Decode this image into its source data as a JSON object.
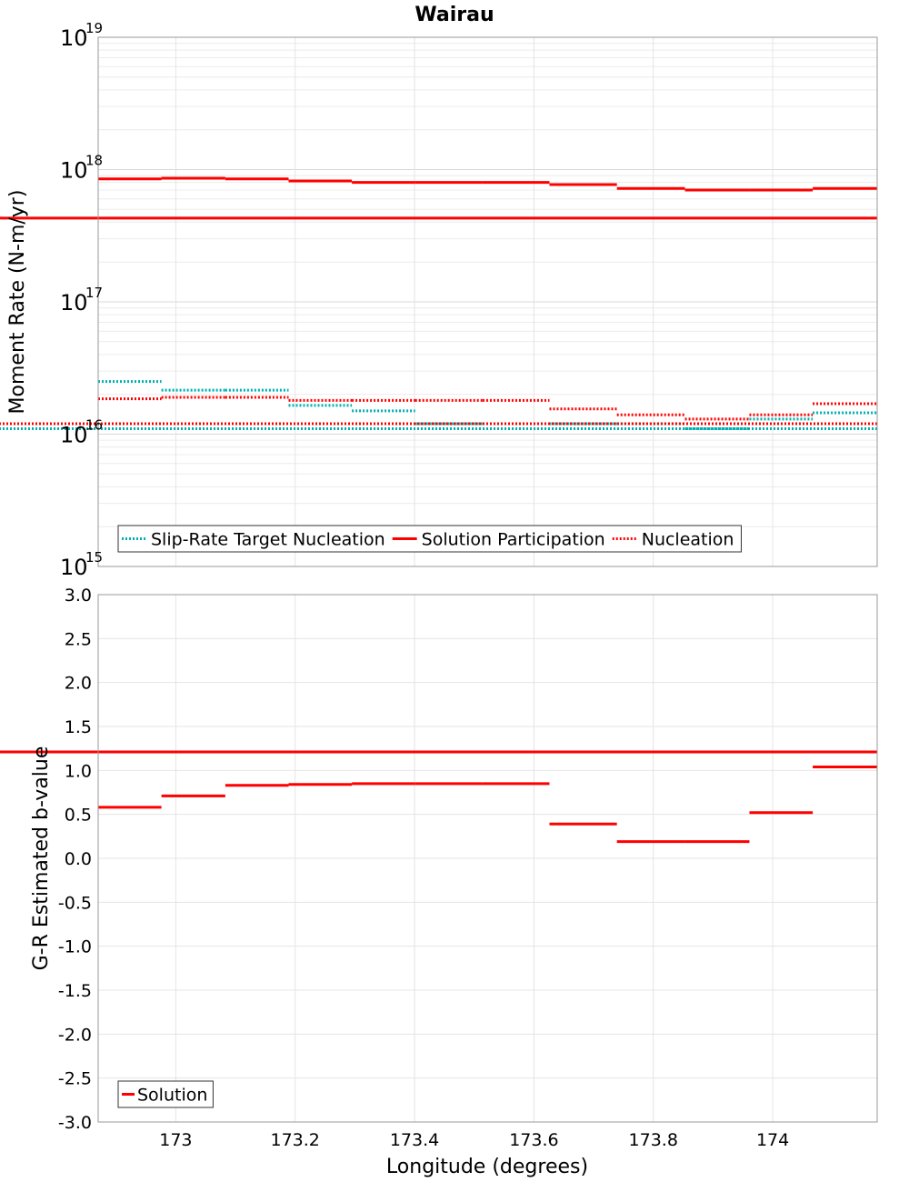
{
  "chart_data": [
    {
      "type": "line",
      "title": "Wairau",
      "ylabel": "Moment Rate (N-m/yr)",
      "yscale": "log",
      "ylim": [
        1000000000000000.0,
        1e+19
      ],
      "xlim": [
        172.87,
        174.175
      ],
      "y_tick_labels": [
        {
          "base": "10",
          "exp": "15",
          "value": 1000000000000000.0
        },
        {
          "base": "10",
          "exp": "16",
          "value": 1e+16
        },
        {
          "base": "10",
          "exp": "17",
          "value": 1e+17
        },
        {
          "base": "10",
          "exp": "18",
          "value": 1e+18
        },
        {
          "base": "10",
          "exp": "19",
          "value": 1e+19
        }
      ],
      "grid": true,
      "legend_position": "bottom-left",
      "segment_edges": [
        172.87,
        172.976,
        173.083,
        173.189,
        173.295,
        173.401,
        173.514,
        173.626,
        173.739,
        173.853,
        173.961,
        174.067,
        174.175
      ],
      "series": [
        {
          "name": "Slip-Rate Target Nucleation",
          "color": "#00b0b0",
          "style": "dotted",
          "values": [
            2.5e+16,
            2.15e+16,
            2.15e+16,
            1.65e+16,
            1.5e+16,
            1.2e+16,
            1.2e+16,
            1.2e+16,
            1.2e+16,
            1.1e+16,
            1.3e+16,
            1.45e+16,
            1.1e+16
          ]
        },
        {
          "name": "Solution Participation",
          "color": "#ff0000",
          "style": "solid",
          "values": [
            8.5e+17,
            8.6e+17,
            8.5e+17,
            8.2e+17,
            8e+17,
            8e+17,
            8e+17,
            7.7e+17,
            7.2e+17,
            7e+17,
            7e+17,
            7.2e+17,
            4.3e+17
          ]
        },
        {
          "name": "Nucleation",
          "color": "#ff0000",
          "style": "dotted",
          "values": [
            1.85e+16,
            1.9e+16,
            1.9e+16,
            1.8e+16,
            1.8e+16,
            1.8e+16,
            1.8e+16,
            1.55e+16,
            1.4e+16,
            1.3e+16,
            1.4e+16,
            1.7e+16,
            1.2e+16
          ]
        }
      ]
    },
    {
      "type": "line",
      "xlabel": "Longitude (degrees)",
      "ylabel": "G-R Estimated b-value",
      "ylim": [
        -3.0,
        3.0
      ],
      "xlim": [
        172.87,
        174.175
      ],
      "y_tick_labels": [
        "-3.0",
        "-2.5",
        "-2.0",
        "-1.5",
        "-1.0",
        "-0.5",
        "0.0",
        "0.5",
        "1.0",
        "1.5",
        "2.0",
        "2.5",
        "3.0"
      ],
      "x_tick_labels": [
        "173",
        "173.2",
        "173.4",
        "173.6",
        "173.8",
        "174"
      ],
      "grid": true,
      "legend_position": "bottom-left",
      "segment_edges": [
        172.87,
        172.976,
        173.083,
        173.189,
        173.295,
        173.401,
        173.514,
        173.626,
        173.739,
        173.853,
        173.961,
        174.067,
        174.175
      ],
      "series": [
        {
          "name": "Solution",
          "color": "#ff0000",
          "style": "solid",
          "values": [
            0.58,
            0.71,
            0.83,
            0.84,
            0.85,
            0.85,
            0.85,
            0.39,
            0.19,
            0.19,
            0.52,
            1.04,
            1.21
          ]
        }
      ]
    }
  ]
}
